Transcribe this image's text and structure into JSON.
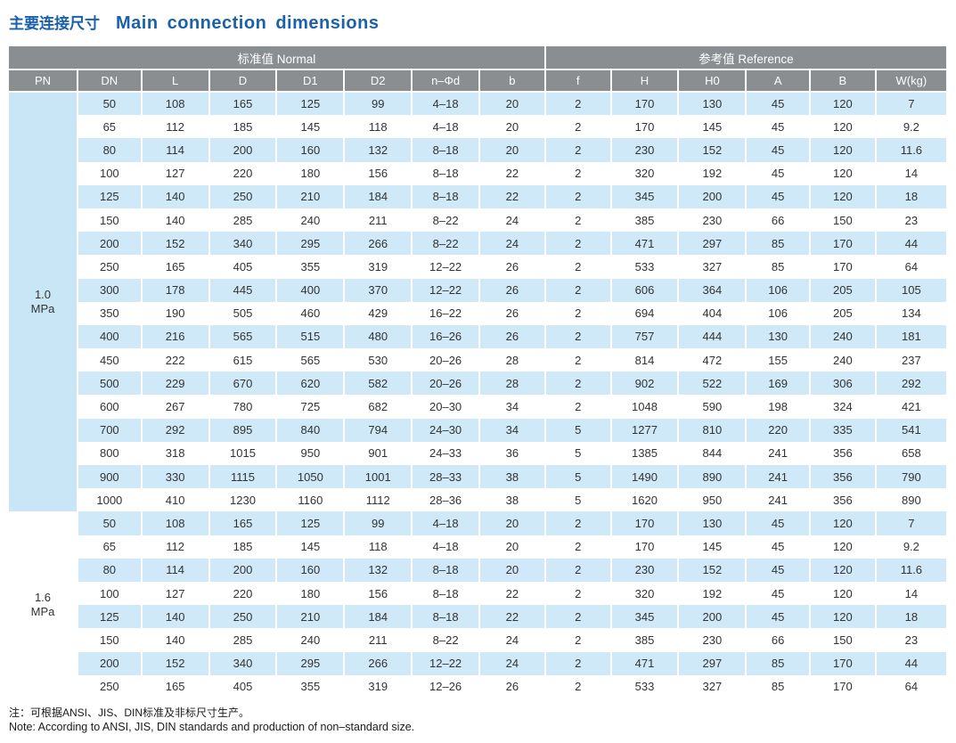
{
  "title": {
    "zh": "主要连接尺寸",
    "en": "Main connection dimensions"
  },
  "colors": {
    "title_blue": "#1a61ad",
    "header_gray": "#8a8e91",
    "row_blue": "#cfe9f8",
    "pn_cell_blue": "#c9e6f6",
    "text_dark": "#333333"
  },
  "table": {
    "group_headers": [
      {
        "label": "标准值 Normal",
        "colspan": 8
      },
      {
        "label": "参考值 Reference",
        "colspan": 6
      }
    ],
    "columns": [
      "PN",
      "DN",
      "L",
      "D",
      "D1",
      "D2",
      "n–Φd",
      "b",
      "f",
      "H",
      "H0",
      "A",
      "B",
      "W(kg)"
    ],
    "groups": [
      {
        "pn_label": "1.0\nMPa",
        "pn_style": "pn-blue",
        "rows": [
          [
            "50",
            "108",
            "165",
            "125",
            "99",
            "4–18",
            "20",
            "2",
            "170",
            "130",
            "45",
            "120",
            "7"
          ],
          [
            "65",
            "112",
            "185",
            "145",
            "118",
            "4–18",
            "20",
            "2",
            "170",
            "145",
            "45",
            "120",
            "9.2"
          ],
          [
            "80",
            "114",
            "200",
            "160",
            "132",
            "8–18",
            "20",
            "2",
            "230",
            "152",
            "45",
            "120",
            "11.6"
          ],
          [
            "100",
            "127",
            "220",
            "180",
            "156",
            "8–18",
            "22",
            "2",
            "320",
            "192",
            "45",
            "120",
            "14"
          ],
          [
            "125",
            "140",
            "250",
            "210",
            "184",
            "8–18",
            "22",
            "2",
            "345",
            "200",
            "45",
            "120",
            "18"
          ],
          [
            "150",
            "140",
            "285",
            "240",
            "211",
            "8–22",
            "24",
            "2",
            "385",
            "230",
            "66",
            "150",
            "23"
          ],
          [
            "200",
            "152",
            "340",
            "295",
            "266",
            "8–22",
            "24",
            "2",
            "471",
            "297",
            "85",
            "170",
            "44"
          ],
          [
            "250",
            "165",
            "405",
            "355",
            "319",
            "12–22",
            "26",
            "2",
            "533",
            "327",
            "85",
            "170",
            "64"
          ],
          [
            "300",
            "178",
            "445",
            "400",
            "370",
            "12–22",
            "26",
            "2",
            "606",
            "364",
            "106",
            "205",
            "105"
          ],
          [
            "350",
            "190",
            "505",
            "460",
            "429",
            "16–22",
            "26",
            "2",
            "694",
            "404",
            "106",
            "205",
            "134"
          ],
          [
            "400",
            "216",
            "565",
            "515",
            "480",
            "16–26",
            "26",
            "2",
            "757",
            "444",
            "130",
            "240",
            "181"
          ],
          [
            "450",
            "222",
            "615",
            "565",
            "530",
            "20–26",
            "28",
            "2",
            "814",
            "472",
            "155",
            "240",
            "237"
          ],
          [
            "500",
            "229",
            "670",
            "620",
            "582",
            "20–26",
            "28",
            "2",
            "902",
            "522",
            "169",
            "306",
            "292"
          ],
          [
            "600",
            "267",
            "780",
            "725",
            "682",
            "20–30",
            "34",
            "2",
            "1048",
            "590",
            "198",
            "324",
            "421"
          ],
          [
            "700",
            "292",
            "895",
            "840",
            "794",
            "24–30",
            "34",
            "5",
            "1277",
            "810",
            "220",
            "335",
            "541"
          ],
          [
            "800",
            "318",
            "1015",
            "950",
            "901",
            "24–33",
            "36",
            "5",
            "1385",
            "844",
            "241",
            "356",
            "658"
          ],
          [
            "900",
            "330",
            "1115",
            "1050",
            "1001",
            "28–33",
            "38",
            "5",
            "1490",
            "890",
            "241",
            "356",
            "790"
          ],
          [
            "1000",
            "410",
            "1230",
            "1160",
            "1112",
            "28–36",
            "38",
            "5",
            "1620",
            "950",
            "241",
            "356",
            "890"
          ]
        ]
      },
      {
        "pn_label": "1.6\nMPa",
        "pn_style": "pn-white",
        "rows": [
          [
            "50",
            "108",
            "165",
            "125",
            "99",
            "4–18",
            "20",
            "2",
            "170",
            "130",
            "45",
            "120",
            "7"
          ],
          [
            "65",
            "112",
            "185",
            "145",
            "118",
            "4–18",
            "20",
            "2",
            "170",
            "145",
            "45",
            "120",
            "9.2"
          ],
          [
            "80",
            "114",
            "200",
            "160",
            "132",
            "8–18",
            "20",
            "2",
            "230",
            "152",
            "45",
            "120",
            "11.6"
          ],
          [
            "100",
            "127",
            "220",
            "180",
            "156",
            "8–18",
            "22",
            "2",
            "320",
            "192",
            "45",
            "120",
            "14"
          ],
          [
            "125",
            "140",
            "250",
            "210",
            "184",
            "8–18",
            "22",
            "2",
            "345",
            "200",
            "45",
            "120",
            "18"
          ],
          [
            "150",
            "140",
            "285",
            "240",
            "211",
            "8–22",
            "24",
            "2",
            "385",
            "230",
            "66",
            "150",
            "23"
          ],
          [
            "200",
            "152",
            "340",
            "295",
            "266",
            "12–22",
            "24",
            "2",
            "471",
            "297",
            "85",
            "170",
            "44"
          ],
          [
            "250",
            "165",
            "405",
            "355",
            "319",
            "12–26",
            "26",
            "2",
            "533",
            "327",
            "85",
            "170",
            "64"
          ]
        ]
      }
    ]
  },
  "notes": {
    "zh": "注：可根据ANSI、JIS、DIN标准及非标尺寸生产。",
    "en": "Note: According to ANSI, JIS, DIN standards and production of non–standard size."
  }
}
